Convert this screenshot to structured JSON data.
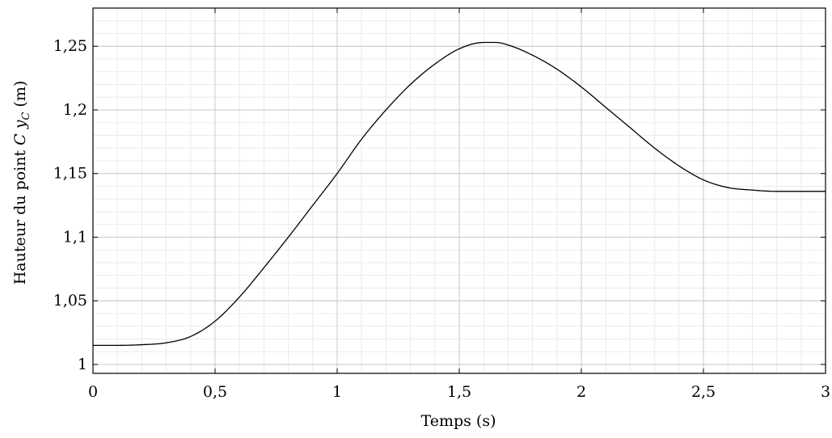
{
  "chart_data": {
    "type": "line",
    "title": "",
    "xlabel": "Temps (s)",
    "ylabel": "Hauteur du point C y_C (m)",
    "ylabel_parts": {
      "before": "Hauteur du point ",
      "var": "C",
      "sub_var": "y",
      "sub": "C",
      "after": " (m)"
    },
    "xlim": [
      0,
      3
    ],
    "ylim": [
      0.993,
      1.28
    ],
    "grid": true,
    "minor_grid": true,
    "x_ticks": [
      {
        "value": 0,
        "label": "0"
      },
      {
        "value": 0.5,
        "label": "0,5"
      },
      {
        "value": 1,
        "label": "1"
      },
      {
        "value": 1.5,
        "label": "1,5"
      },
      {
        "value": 2,
        "label": "2"
      },
      {
        "value": 2.5,
        "label": "2,5"
      },
      {
        "value": 3,
        "label": "3"
      }
    ],
    "y_ticks": [
      {
        "value": 1,
        "label": "1"
      },
      {
        "value": 1.05,
        "label": "1,05"
      },
      {
        "value": 1.1,
        "label": "1,1"
      },
      {
        "value": 1.15,
        "label": "1,15"
      },
      {
        "value": 1.2,
        "label": "1,2"
      },
      {
        "value": 1.25,
        "label": "1,25"
      }
    ],
    "series": [
      {
        "color": "#000000",
        "x": [
          0,
          0.1,
          0.2,
          0.3,
          0.4,
          0.5,
          0.6,
          0.7,
          0.8,
          0.9,
          1.0,
          1.1,
          1.2,
          1.3,
          1.4,
          1.5,
          1.6,
          1.65,
          1.7,
          1.8,
          1.9,
          2.0,
          2.1,
          2.2,
          2.3,
          2.4,
          2.5,
          2.6,
          2.7,
          2.8,
          2.9,
          3.0
        ],
        "y": [
          1.015,
          1.015,
          1.0155,
          1.017,
          1.022,
          1.034,
          1.053,
          1.076,
          1.1,
          1.125,
          1.15,
          1.177,
          1.2,
          1.22,
          1.236,
          1.248,
          1.253,
          1.253,
          1.251,
          1.243,
          1.232,
          1.218,
          1.202,
          1.186,
          1.17,
          1.156,
          1.145,
          1.139,
          1.137,
          1.136,
          1.136,
          1.136
        ]
      }
    ]
  }
}
